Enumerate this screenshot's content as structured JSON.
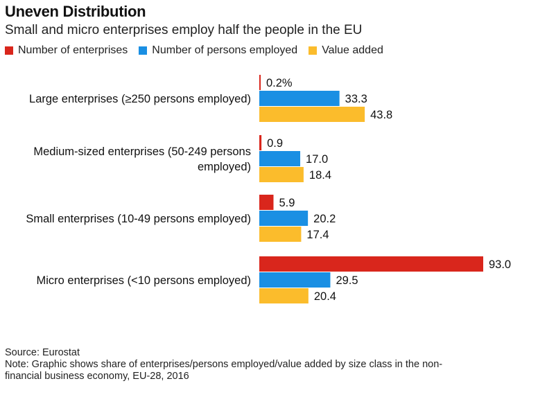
{
  "chart_data": {
    "type": "bar",
    "orientation": "horizontal",
    "title": "Uneven Distribution",
    "subtitle": "Small and micro enterprises employ half the people in the EU",
    "categories": [
      [
        "Large enterprises (≥250 persons employed)"
      ],
      [
        "Medium-sized enterprises (50-249 persons",
        "employed)"
      ],
      [
        "Small enterprises (10-49 persons employed)"
      ],
      [
        "Micro enterprises (<10 persons employed)"
      ]
    ],
    "series": [
      {
        "name": "Number of enterprises",
        "color": "#d9261c",
        "values": [
          0.2,
          0.9,
          5.9,
          93.0
        ],
        "labels": [
          "0.2%",
          "0.9",
          "5.9",
          "93.0"
        ]
      },
      {
        "name": "Number of persons employed",
        "color": "#1a8fe3",
        "values": [
          33.3,
          17.0,
          20.2,
          29.5
        ],
        "labels": [
          "33.3",
          "17.0",
          "20.2",
          "29.5"
        ]
      },
      {
        "name": "Value added",
        "color": "#fbbc2c",
        "values": [
          43.8,
          18.4,
          17.4,
          20.4
        ],
        "labels": [
          "43.8",
          "18.4",
          "17.4",
          "20.4"
        ]
      }
    ],
    "xlim": [
      0,
      93.0
    ],
    "grid": false,
    "legend": "top-left"
  },
  "footer": {
    "source": "Source: Eurostat",
    "note_line1": "Note: Graphic shows share of enterprises/persons employed/value added by size class in the non-",
    "note_line2": "financial business economy, EU-28, 2016"
  }
}
